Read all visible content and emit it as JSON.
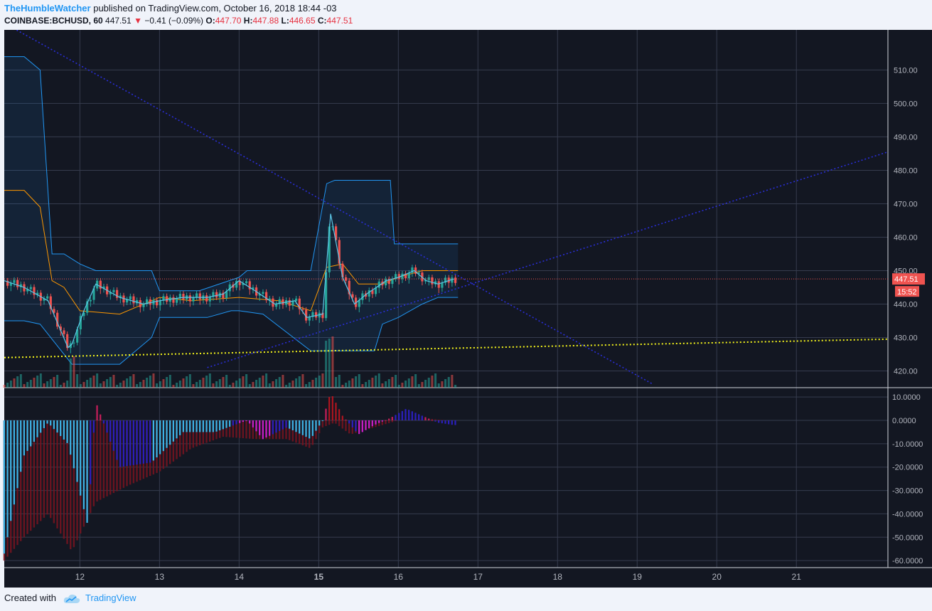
{
  "header": {
    "author": "TheHumbleWatcher",
    "published_text": "published on TradingView.com, October 16, 2018 18:44 -03",
    "symbol": "COINBASE:BCHUSD, 60",
    "last": "447.51",
    "change": "−0.41 (−0.09%)",
    "o_label": "O:",
    "o_value": "447.70",
    "h_label": "H:",
    "h_value": "447.88",
    "l_label": "L:",
    "l_value": "446.65",
    "c_label": "C:",
    "c_value": "447.51"
  },
  "footer": {
    "created_with": "Created with",
    "brand": "TradingView"
  },
  "colors": {
    "background": "#131722",
    "grid": "#363c4e",
    "bull": "#26a69a",
    "bear": "#ef5350",
    "band": "#2196f3",
    "mid": "#ff9800",
    "price_line": "#ef5350",
    "trend": "#2a2ed8",
    "support": "#f5f51b"
  },
  "chart_data": [
    {
      "type": "line",
      "title": "",
      "symbol": "COINBASE:BCHUSD",
      "interval": "60",
      "ylim": [
        415,
        522
      ],
      "y_ticks": [
        "510.00",
        "500.00",
        "490.00",
        "480.00",
        "470.00",
        "460.00",
        "450.00",
        "440.00",
        "430.00",
        "420.00"
      ],
      "x_ticks": [
        {
          "label": "12",
          "day": 12
        },
        {
          "label": "13",
          "day": 13
        },
        {
          "label": "14",
          "day": 14
        },
        {
          "label": "15",
          "day": 15
        },
        {
          "label": "16",
          "day": 16
        },
        {
          "label": "17",
          "day": 17
        },
        {
          "label": "18",
          "day": 18
        },
        {
          "label": "19",
          "day": 19
        },
        {
          "label": "20",
          "day": 20
        },
        {
          "label": "21",
          "day": 21
        }
      ],
      "xlim": [
        11.05,
        22.15
      ],
      "price_label": "447.51",
      "countdown_label": "15:52",
      "series": [
        {
          "kind": "close",
          "x": [
            11.05,
            11.3,
            11.6,
            11.85,
            11.9,
            12.05,
            12.2,
            12.5,
            12.8,
            13.0,
            13.3,
            13.6,
            13.8,
            14.0,
            14.2,
            14.45,
            14.7,
            14.85,
            15.05,
            15.15,
            15.3,
            15.45,
            15.6,
            15.85,
            16.0,
            16.2,
            16.35,
            16.5,
            16.7
          ],
          "y": [
            447,
            445,
            441,
            427,
            428,
            438,
            446,
            442,
            440,
            441,
            442,
            442,
            443,
            447,
            444,
            440,
            441,
            436,
            437,
            467,
            448,
            440,
            443,
            447,
            448,
            450,
            447,
            446,
            447.5
          ]
        },
        {
          "kind": "upper_band",
          "x": [
            11.05,
            11.3,
            11.5,
            11.65,
            11.8,
            12.0,
            12.2,
            12.9,
            13.0,
            13.5,
            14.0,
            14.1,
            14.9,
            15.1,
            15.2,
            15.9,
            15.95,
            16.1,
            16.5,
            16.75
          ],
          "y": [
            514,
            514,
            510,
            455,
            455,
            452,
            450,
            450,
            444,
            444,
            448,
            450,
            450,
            476,
            477,
            477,
            458,
            458,
            458,
            458
          ]
        },
        {
          "kind": "lower_band",
          "x": [
            11.05,
            11.3,
            11.5,
            11.9,
            12.0,
            12.5,
            12.6,
            12.9,
            13.0,
            13.6,
            13.9,
            14.0,
            14.3,
            14.9,
            15.0,
            15.1,
            15.3,
            15.5,
            15.7,
            15.8,
            16.0,
            16.3,
            16.5,
            16.75
          ],
          "y": [
            435,
            435,
            434,
            422,
            422,
            422,
            424,
            430,
            436,
            436,
            438,
            438,
            437,
            426,
            426,
            426,
            426,
            426,
            426,
            434,
            436,
            440,
            442,
            442
          ]
        },
        {
          "kind": "mid_line",
          "x": [
            11.05,
            11.3,
            11.5,
            11.65,
            11.8,
            12.0,
            12.5,
            13.0,
            13.4,
            14.0,
            14.5,
            14.9,
            15.1,
            15.3,
            15.5,
            15.8,
            16.0,
            16.3,
            16.5,
            16.75
          ],
          "y": [
            474,
            474,
            469,
            447,
            445,
            438,
            437,
            442,
            441,
            442,
            441,
            438,
            451,
            452,
            446,
            446,
            448,
            450,
            450,
            450
          ]
        }
      ],
      "trendlines": [
        {
          "name": "descending",
          "from": [
            11.05,
            524
          ],
          "to": [
            19.2,
            416
          ]
        },
        {
          "name": "ascending",
          "from": [
            13.6,
            421
          ],
          "to": [
            22.15,
            485.5
          ]
        },
        {
          "name": "support",
          "from": [
            11.05,
            424
          ],
          "to": [
            22.15,
            429.5
          ]
        }
      ]
    },
    {
      "type": "bar",
      "title": "",
      "ylim": [
        -63,
        14
      ],
      "y_ticks": [
        "10.0000",
        "0.0000",
        "-10.0000",
        "-20.0000",
        "-30.0000",
        "-40.0000",
        "-50.0000",
        "-60.0000"
      ],
      "series": [
        {
          "name": "",
          "kind": "momentum",
          "x": [
            11.05,
            11.3,
            11.6,
            11.85,
            12.1,
            12.2,
            12.5,
            12.9,
            13.3,
            13.7,
            14.1,
            14.3,
            14.6,
            14.9,
            15.05,
            15.15,
            15.3,
            15.5,
            15.7,
            15.9,
            16.1,
            16.3,
            16.5,
            16.7
          ],
          "y": [
            -57,
            -15,
            -1,
            -10,
            -45,
            8,
            -20,
            -18,
            -5,
            -5,
            0,
            -8,
            -3,
            -8,
            0,
            12,
            2,
            -6,
            -2,
            1,
            5,
            2,
            -1,
            -2
          ]
        },
        {
          "name": "",
          "kind": "signal",
          "x": [
            11.05,
            11.3,
            11.6,
            11.9,
            12.2,
            12.6,
            13.0,
            13.4,
            13.8,
            14.2,
            14.6,
            14.9,
            15.05,
            15.2,
            15.4,
            15.7,
            16.0,
            16.3,
            16.6
          ],
          "y": [
            -60,
            -50,
            -40,
            -56,
            -35,
            -28,
            -22,
            -12,
            -7,
            -8,
            -8,
            -12,
            -3,
            -1,
            -6,
            -3,
            0,
            1,
            0
          ]
        }
      ]
    }
  ]
}
